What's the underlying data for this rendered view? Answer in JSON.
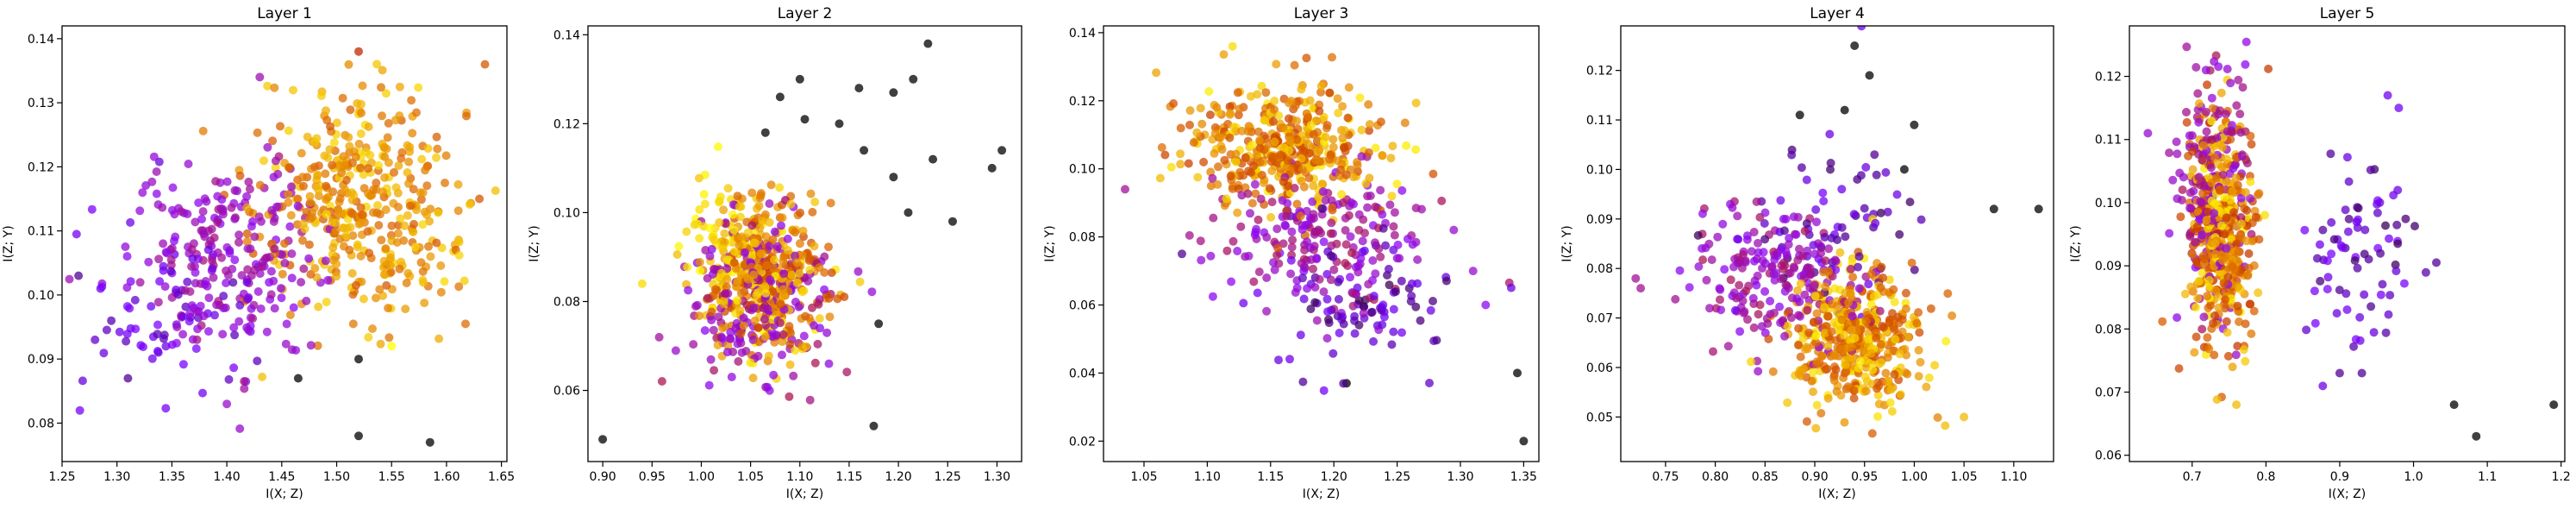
{
  "chart_data": [
    {
      "type": "scatter",
      "title": "Layer 1",
      "xlabel": "I(X; Z)",
      "ylabel": "I(Z; Y)",
      "xlim": [
        1.25,
        1.655
      ],
      "ylim": [
        0.074,
        0.142
      ],
      "xticks": [
        1.25,
        1.3,
        1.35,
        1.4,
        1.45,
        1.5,
        1.55,
        1.6,
        1.65
      ],
      "xtick_labels": [
        "1.25",
        "1.30",
        "1.35",
        "1.40",
        "1.45",
        "1.50",
        "1.55",
        "1.60",
        "1.65"
      ],
      "yticks": [
        0.08,
        0.09,
        0.1,
        0.11,
        0.12,
        0.13,
        0.14
      ],
      "ytick_labels": [
        "0.08",
        "0.09",
        "0.10",
        "0.11",
        "0.12",
        "0.13",
        "0.14"
      ],
      "grid": false,
      "colormap": "gnuplot",
      "marker_alpha": 0.75,
      "clusters": [
        {
          "cx": 1.52,
          "cy": 0.113,
          "sx": 0.045,
          "sy": 0.009,
          "n": 420,
          "c0": 0.7,
          "c1": 0.95
        },
        {
          "cx": 1.4,
          "cy": 0.106,
          "sx": 0.045,
          "sy": 0.008,
          "n": 230,
          "c0": 0.3,
          "c1": 0.42
        },
        {
          "cx": 1.35,
          "cy": 0.098,
          "sx": 0.035,
          "sy": 0.007,
          "n": 70,
          "c0": 0.12,
          "c1": 0.25
        }
      ],
      "points": [
        {
          "x": 1.52,
          "y": 0.138,
          "c": 0.55
        },
        {
          "x": 1.585,
          "y": 0.077,
          "c": 0.0
        },
        {
          "x": 1.52,
          "y": 0.078,
          "c": 0.0
        },
        {
          "x": 1.635,
          "y": 0.136,
          "c": 0.7
        },
        {
          "x": 1.265,
          "y": 0.103,
          "c": 0.1
        },
        {
          "x": 1.43,
          "y": 0.134,
          "c": 0.38
        },
        {
          "x": 1.4,
          "y": 0.083,
          "c": 0.35
        },
        {
          "x": 1.31,
          "y": 0.087,
          "c": 0.1
        },
        {
          "x": 1.465,
          "y": 0.087,
          "c": 0.0
        },
        {
          "x": 1.55,
          "y": 0.092,
          "c": 1.0
        },
        {
          "x": 1.63,
          "y": 0.115,
          "c": 0.7
        },
        {
          "x": 1.52,
          "y": 0.09,
          "c": 0.0
        },
        {
          "x": 1.28,
          "y": 0.093,
          "c": 0.15
        },
        {
          "x": 1.285,
          "y": 0.101,
          "c": 0.2
        }
      ]
    },
    {
      "type": "scatter",
      "title": "Layer 2",
      "xlabel": "I(X; Z)",
      "ylabel": "I(Z; Y)",
      "xlim": [
        0.885,
        1.325
      ],
      "ylim": [
        0.044,
        0.142
      ],
      "xticks": [
        0.9,
        0.95,
        1.0,
        1.05,
        1.1,
        1.15,
        1.2,
        1.25,
        1.3
      ],
      "xtick_labels": [
        "0.90",
        "0.95",
        "1.00",
        "1.05",
        "1.10",
        "1.15",
        "1.20",
        "1.25",
        "1.30"
      ],
      "yticks": [
        0.06,
        0.08,
        0.1,
        0.12,
        0.14
      ],
      "ytick_labels": [
        "0.06",
        "0.08",
        "0.10",
        "0.12",
        "0.14"
      ],
      "grid": false,
      "colormap": "gnuplot",
      "marker_alpha": 0.75,
      "clusters": [
        {
          "cx": 1.065,
          "cy": 0.085,
          "sx": 0.03,
          "sy": 0.009,
          "n": 380,
          "c0": 0.65,
          "c1": 0.98
        },
        {
          "cx": 1.06,
          "cy": 0.08,
          "sx": 0.035,
          "sy": 0.009,
          "n": 200,
          "c0": 0.3,
          "c1": 0.45
        },
        {
          "cx": 1.02,
          "cy": 0.095,
          "sx": 0.02,
          "sy": 0.008,
          "n": 60,
          "c0": 0.9,
          "c1": 1.0
        }
      ],
      "points": [
        {
          "x": 0.9,
          "y": 0.049,
          "c": 0.0
        },
        {
          "x": 1.175,
          "y": 0.052,
          "c": 0.0
        },
        {
          "x": 1.23,
          "y": 0.138,
          "c": 0.0
        },
        {
          "x": 1.305,
          "y": 0.114,
          "c": 0.0
        },
        {
          "x": 1.295,
          "y": 0.11,
          "c": 0.0
        },
        {
          "x": 1.255,
          "y": 0.098,
          "c": 0.0
        },
        {
          "x": 1.21,
          "y": 0.1,
          "c": 0.0
        },
        {
          "x": 1.215,
          "y": 0.13,
          "c": 0.0
        },
        {
          "x": 1.195,
          "y": 0.127,
          "c": 0.0
        },
        {
          "x": 1.16,
          "y": 0.128,
          "c": 0.0
        },
        {
          "x": 1.1,
          "y": 0.13,
          "c": 0.0
        },
        {
          "x": 1.08,
          "y": 0.126,
          "c": 0.0
        },
        {
          "x": 1.14,
          "y": 0.12,
          "c": 0.0
        },
        {
          "x": 1.235,
          "y": 0.112,
          "c": 0.0
        },
        {
          "x": 1.195,
          "y": 0.108,
          "c": 0.0
        },
        {
          "x": 1.165,
          "y": 0.114,
          "c": 0.0
        },
        {
          "x": 1.18,
          "y": 0.075,
          "c": 0.0
        },
        {
          "x": 0.94,
          "y": 0.084,
          "c": 0.95
        },
        {
          "x": 1.105,
          "y": 0.121,
          "c": 0.0
        },
        {
          "x": 1.065,
          "y": 0.118,
          "c": 0.0
        }
      ]
    },
    {
      "type": "scatter",
      "title": "Layer 3",
      "xlabel": "I(X; Z)",
      "ylabel": "I(Z; Y)",
      "xlim": [
        1.018,
        1.362
      ],
      "ylim": [
        0.014,
        0.142
      ],
      "xticks": [
        1.05,
        1.1,
        1.15,
        1.2,
        1.25,
        1.3,
        1.35
      ],
      "xtick_labels": [
        "1.05",
        "1.10",
        "1.15",
        "1.20",
        "1.25",
        "1.30",
        "1.35"
      ],
      "yticks": [
        0.02,
        0.04,
        0.06,
        0.08,
        0.1,
        0.12,
        0.14
      ],
      "ytick_labels": [
        "0.02",
        "0.04",
        "0.06",
        "0.08",
        "0.10",
        "0.12",
        "0.14"
      ],
      "grid": false,
      "colormap": "gnuplot",
      "marker_alpha": 0.75,
      "clusters": [
        {
          "cx": 1.16,
          "cy": 0.106,
          "sx": 0.04,
          "sy": 0.009,
          "n": 430,
          "c0": 0.62,
          "c1": 0.98
        },
        {
          "cx": 1.19,
          "cy": 0.078,
          "sx": 0.04,
          "sy": 0.011,
          "n": 200,
          "c0": 0.3,
          "c1": 0.45
        },
        {
          "cx": 1.22,
          "cy": 0.062,
          "sx": 0.04,
          "sy": 0.009,
          "n": 90,
          "c0": 0.05,
          "c1": 0.22
        }
      ],
      "points": [
        {
          "x": 1.35,
          "y": 0.02,
          "c": 0.0
        },
        {
          "x": 1.345,
          "y": 0.04,
          "c": 0.0
        },
        {
          "x": 1.035,
          "y": 0.094,
          "c": 0.4
        },
        {
          "x": 1.12,
          "y": 0.136,
          "c": 0.95
        },
        {
          "x": 1.21,
          "y": 0.037,
          "c": 0.0
        },
        {
          "x": 1.32,
          "y": 0.06,
          "c": 0.3
        },
        {
          "x": 1.31,
          "y": 0.07,
          "c": 0.35
        },
        {
          "x": 1.08,
          "y": 0.075,
          "c": 0.1
        }
      ]
    },
    {
      "type": "scatter",
      "title": "Layer 4",
      "xlabel": "I(X; Z)",
      "ylabel": "I(Z; Y)",
      "xlim": [
        0.705,
        1.14
      ],
      "ylim": [
        0.041,
        0.129
      ],
      "xticks": [
        0.75,
        0.8,
        0.85,
        0.9,
        0.95,
        1.0,
        1.05,
        1.1
      ],
      "xtick_labels": [
        "0.75",
        "0.80",
        "0.85",
        "0.90",
        "0.95",
        "1.00",
        "1.05",
        "1.10"
      ],
      "yticks": [
        0.05,
        0.06,
        0.07,
        0.08,
        0.09,
        0.1,
        0.11,
        0.12
      ],
      "ytick_labels": [
        "0.05",
        "0.06",
        "0.07",
        "0.08",
        "0.09",
        "0.10",
        "0.11",
        "0.12"
      ],
      "grid": false,
      "colormap": "gnuplot",
      "marker_alpha": 0.75,
      "clusters": [
        {
          "cx": 0.945,
          "cy": 0.065,
          "sx": 0.035,
          "sy": 0.007,
          "n": 430,
          "c0": 0.65,
          "c1": 0.98
        },
        {
          "cx": 0.86,
          "cy": 0.078,
          "sx": 0.045,
          "sy": 0.007,
          "n": 200,
          "c0": 0.3,
          "c1": 0.45
        },
        {
          "cx": 0.92,
          "cy": 0.09,
          "sx": 0.05,
          "sy": 0.009,
          "n": 70,
          "c0": 0.05,
          "c1": 0.22
        }
      ],
      "points": [
        {
          "x": 0.94,
          "y": 0.125,
          "c": 0.0
        },
        {
          "x": 0.955,
          "y": 0.119,
          "c": 0.0
        },
        {
          "x": 0.93,
          "y": 0.112,
          "c": 0.0
        },
        {
          "x": 1.125,
          "y": 0.092,
          "c": 0.0
        },
        {
          "x": 1.08,
          "y": 0.092,
          "c": 0.0
        },
        {
          "x": 1.0,
          "y": 0.109,
          "c": 0.0
        },
        {
          "x": 0.885,
          "y": 0.111,
          "c": 0.0
        },
        {
          "x": 0.72,
          "y": 0.078,
          "c": 0.4
        },
        {
          "x": 0.725,
          "y": 0.076,
          "c": 0.4
        },
        {
          "x": 1.05,
          "y": 0.05,
          "c": 0.9
        },
        {
          "x": 0.96,
          "y": 0.103,
          "c": 0.1
        },
        {
          "x": 0.99,
          "y": 0.1,
          "c": 0.0
        }
      ]
    },
    {
      "type": "scatter",
      "title": "Layer 5",
      "xlabel": "I(X; Z)",
      "ylabel": "I(Z; Y)",
      "xlim": [
        0.615,
        1.205
      ],
      "ylim": [
        0.059,
        0.128
      ],
      "xticks": [
        0.7,
        0.8,
        0.9,
        1.0,
        1.1,
        1.2
      ],
      "xtick_labels": [
        "0.7",
        "0.8",
        "0.9",
        "1.0",
        "1.1",
        "1.2"
      ],
      "yticks": [
        0.06,
        0.07,
        0.08,
        0.09,
        0.1,
        0.11,
        0.12
      ],
      "ytick_labels": [
        "0.06",
        "0.07",
        "0.08",
        "0.09",
        "0.10",
        "0.11",
        "0.12"
      ],
      "grid": false,
      "colormap": "gnuplot",
      "marker_alpha": 0.75,
      "clusters": [
        {
          "cx": 0.74,
          "cy": 0.095,
          "sx": 0.022,
          "sy": 0.009,
          "n": 430,
          "c0": 0.6,
          "c1": 0.98
        },
        {
          "cx": 0.73,
          "cy": 0.103,
          "sx": 0.025,
          "sy": 0.01,
          "n": 180,
          "c0": 0.3,
          "c1": 0.45
        },
        {
          "cx": 0.93,
          "cy": 0.091,
          "sx": 0.04,
          "sy": 0.007,
          "n": 75,
          "c0": 0.05,
          "c1": 0.25
        }
      ],
      "points": [
        {
          "x": 1.19,
          "y": 0.068,
          "c": 0.0
        },
        {
          "x": 1.055,
          "y": 0.068,
          "c": 0.0
        },
        {
          "x": 1.085,
          "y": 0.063,
          "c": 0.0
        },
        {
          "x": 0.76,
          "y": 0.068,
          "c": 0.9
        },
        {
          "x": 0.64,
          "y": 0.111,
          "c": 0.35
        },
        {
          "x": 0.965,
          "y": 0.117,
          "c": 0.2
        },
        {
          "x": 0.98,
          "y": 0.115,
          "c": 0.2
        },
        {
          "x": 0.9,
          "y": 0.073,
          "c": 0.1
        },
        {
          "x": 0.93,
          "y": 0.073,
          "c": 0.1
        }
      ]
    }
  ]
}
